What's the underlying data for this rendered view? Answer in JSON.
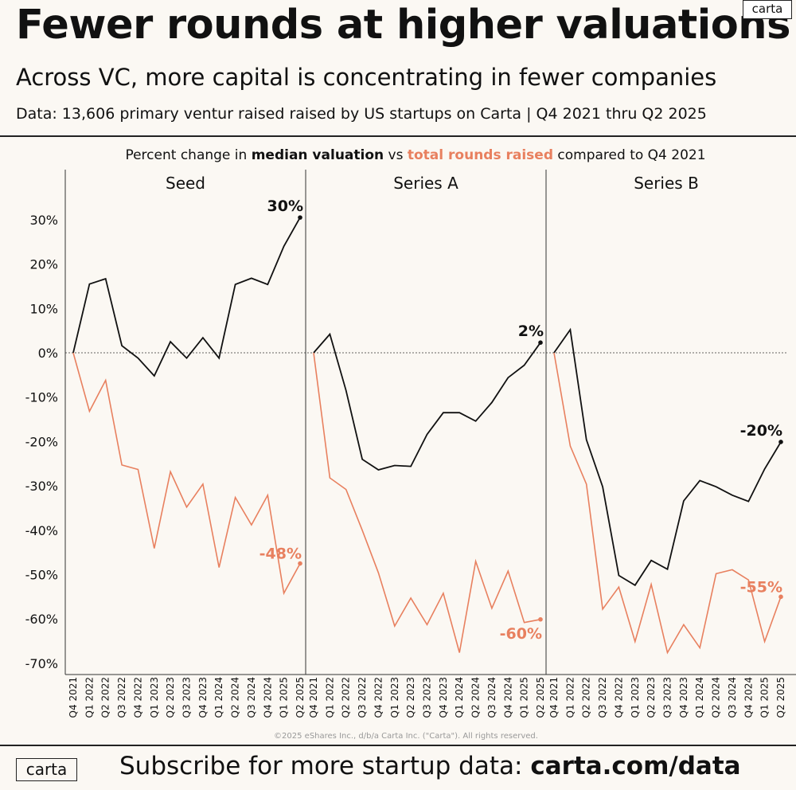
{
  "header": {
    "title": "Fewer rounds at higher valuations",
    "subtitle": "Across VC, more capital is concentrating in fewer companies",
    "source": "Data: 13,606 primary ventur raised raised by US startups on Carta | Q4 2021 thru Q2 2025",
    "logo": "carta"
  },
  "colors": {
    "valuation": "#111111",
    "rounds": "#e8805f",
    "background": "#fbf8f3"
  },
  "chart_data": {
    "type": "line",
    "subtitle_parts": [
      "Percent change in ",
      "median valuation",
      " vs ",
      "total rounds raised",
      " compared to Q4 2021"
    ],
    "copyright": "©2025 eShares Inc., d/b/a Carta Inc. (\"Carta\"). All rights reserved.",
    "y_ticks": [
      "30%",
      "20%",
      "10%",
      "0%",
      "-10%",
      "-20%",
      "-30%",
      "-40%",
      "-50%",
      "-60%",
      "-70%"
    ],
    "ylim": [
      -72,
      34
    ],
    "grid": false,
    "categories": [
      "Q4 2021",
      "Q1 2022",
      "Q2 2022",
      "Q3 2022",
      "Q4 2022",
      "Q1 2023",
      "Q2 2023",
      "Q3 2023",
      "Q4 2023",
      "Q1 2024",
      "Q2 2024",
      "Q3 2024",
      "Q4 2024",
      "Q1 2025",
      "Q2 2025"
    ],
    "panels": [
      {
        "name": "Seed",
        "series": [
          {
            "name": "median valuation",
            "values": [
              0,
              15.5,
              16.7,
              1.6,
              -1.2,
              -5.2,
              2.5,
              -1.2,
              3.4,
              -1.2,
              15.4,
              16.8,
              15.4,
              24,
              30.5
            ],
            "end_label": "30%"
          },
          {
            "name": "total rounds raised",
            "values": [
              0,
              -13.2,
              -6.2,
              -25.3,
              -26.3,
              -44.1,
              -26.8,
              -34.8,
              -29.6,
              -48.4,
              -32.6,
              -38.8,
              -32.1,
              -54.2,
              -47.5
            ],
            "end_label": "-48%"
          }
        ]
      },
      {
        "name": "Series A",
        "series": [
          {
            "name": "median valuation",
            "values": [
              0,
              4.2,
              -8.5,
              -24,
              -26.4,
              -25.4,
              -25.6,
              -18.4,
              -13.5,
              -13.5,
              -15.4,
              -11.2,
              -5.6,
              -2.8,
              2.3
            ],
            "end_label": "2%"
          },
          {
            "name": "total rounds raised",
            "values": [
              0,
              -28.2,
              -30.8,
              -40,
              -49.6,
              -61.6,
              -55.3,
              -61.3,
              -54.2,
              -67.6,
              -47,
              -57.6,
              -49.2,
              -60.8,
              -60.1
            ],
            "end_label": "-60%"
          }
        ]
      },
      {
        "name": "Series B",
        "series": [
          {
            "name": "median valuation",
            "values": [
              0,
              5.2,
              -19.6,
              -30.2,
              -50.2,
              -52.4,
              -46.8,
              -48.8,
              -33.4,
              -28.8,
              -30.2,
              -32.1,
              -33.5,
              -26.2,
              -20.1
            ],
            "end_label": "-20%"
          },
          {
            "name": "total rounds raised",
            "values": [
              0,
              -21,
              -29.6,
              -57.8,
              -52.8,
              -65.1,
              -52.2,
              -67.6,
              -61.3,
              -66.5,
              -49.8,
              -48.9,
              -51.2,
              -65.1,
              -55
            ],
            "end_label": "-55%"
          }
        ]
      }
    ]
  },
  "footer": {
    "logo": "carta",
    "text_prefix": "Subscribe for more startup data: ",
    "text_link": "carta.com/data"
  }
}
